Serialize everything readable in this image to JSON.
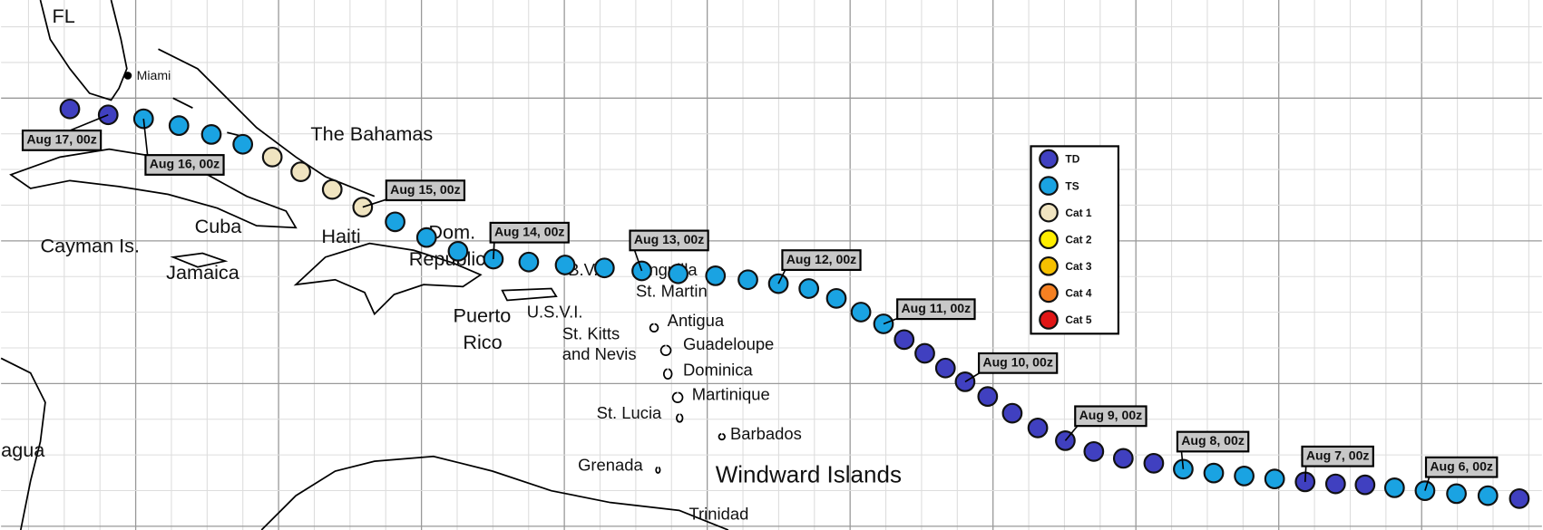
{
  "places": [
    "FL",
    "Miami",
    "The Bahamas",
    "Cuba",
    "Cayman Is.",
    "Jamaica",
    "Haiti",
    "Dom.",
    "Republic",
    "Puerto",
    "Rico",
    "U.S.V.I.",
    "B.V.",
    "Anguilla",
    "St. Martin",
    "Antigua",
    "St. Kitts",
    "and Nevis",
    "Guadeloupe",
    "Dominica",
    "Martinique",
    "St. Lucia",
    "Barbados",
    "Grenada",
    "Windward Islands",
    "Trinidad",
    "agua"
  ],
  "date_labels": [
    "Aug 6, 00z",
    "Aug 7, 00z",
    "Aug 8, 00z",
    "Aug 9, 00z",
    "Aug 10, 00z",
    "Aug 11, 00z",
    "Aug 12, 00z",
    "Aug 13, 00z",
    "Aug 14, 00z",
    "Aug 15, 00z",
    "Aug 16, 00z",
    "Aug 17, 00z"
  ],
  "legend": [
    {
      "label": "TD",
      "color": "#4040c0"
    },
    {
      "label": "TS",
      "color": "#1aa3e2"
    },
    {
      "label": "Cat 1",
      "color": "#f0e4c0"
    },
    {
      "label": "Cat 2",
      "color": "#ffee00"
    },
    {
      "label": "Cat 3",
      "color": "#f6c000"
    },
    {
      "label": "Cat 4",
      "color": "#f58022"
    },
    {
      "label": "Cat 5",
      "color": "#e01515"
    }
  ],
  "track": [
    "TD",
    "TS",
    "TS",
    "TS",
    "TS",
    "TD",
    "TD",
    "TD",
    "TS",
    "TS",
    "TS",
    "TS",
    "TD",
    "TD",
    "TD",
    "TD",
    "TD",
    "TD",
    "TD",
    "TD",
    "TD",
    "TD",
    "TD",
    "TS",
    "TS",
    "TS",
    "TS",
    "TS",
    "TS",
    "TS",
    "TS",
    "TS",
    "TS",
    "TS",
    "TS",
    "TS",
    "TS",
    "TS",
    "TS",
    "Cat 1",
    "Cat 1",
    "Cat 1",
    "Cat 1",
    "TS",
    "TS",
    "TS",
    "TS",
    "TD",
    "TD"
  ]
}
